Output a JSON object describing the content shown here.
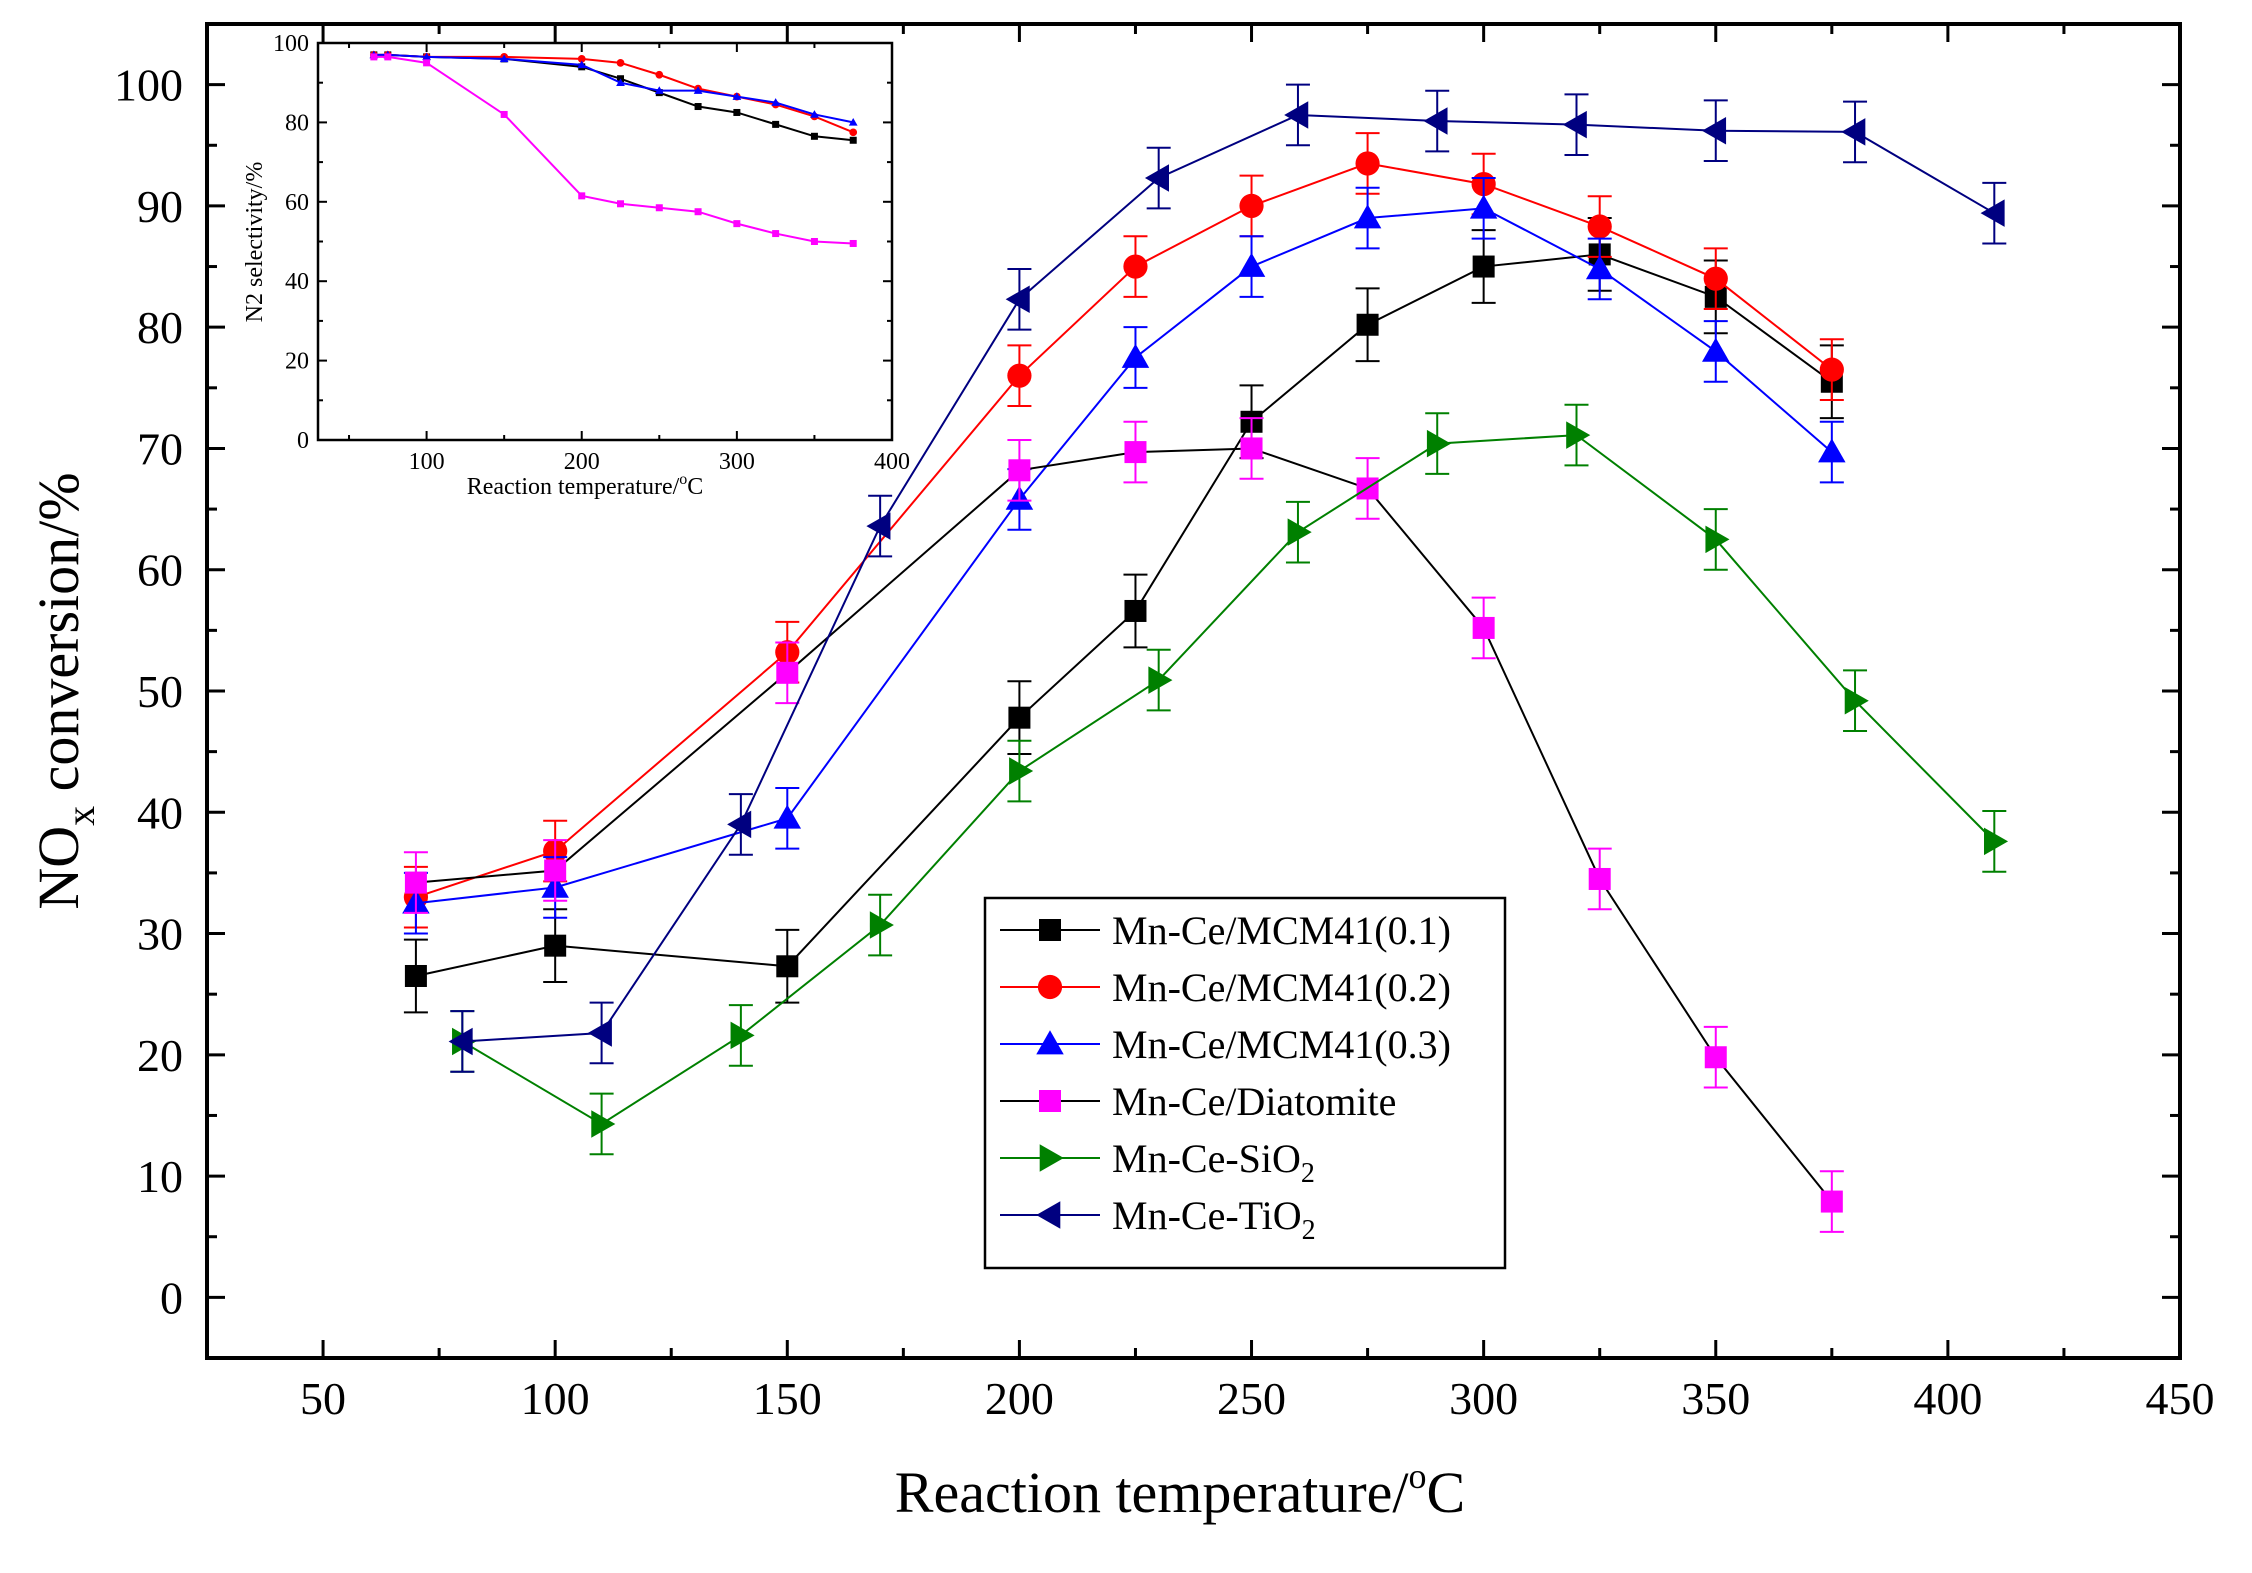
{
  "chart_data": [
    {
      "type": "line",
      "id": "main",
      "xlabel": "Reaction temperature/",
      "xlabel_sup": "o",
      "xlabel_unit": "C",
      "ylabel_main": "NO",
      "ylabel_sub": "x",
      "ylabel_rest": " conversion/%",
      "xlim": [
        25,
        450
      ],
      "ylim": [
        -5,
        105
      ],
      "xticks": [
        50,
        100,
        150,
        200,
        250,
        300,
        350,
        400,
        450
      ],
      "yticks": [
        0,
        10,
        20,
        30,
        40,
        50,
        60,
        70,
        80,
        90,
        100
      ],
      "legend_position": "bottom-center",
      "series": [
        {
          "name": "Mn-Ce/MCM41(0.1)",
          "name_sub": "",
          "color": "#000000",
          "line_color": "#000000",
          "marker": "square",
          "x": [
            70,
            100,
            150,
            200,
            225,
            250,
            275,
            300,
            325,
            350,
            375
          ],
          "y": [
            26.5,
            29,
            27.3,
            47.8,
            56.6,
            72.2,
            80.2,
            85,
            86,
            82.5,
            75.5
          ],
          "err": [
            3,
            3,
            3,
            3,
            3,
            3,
            3,
            3,
            3,
            3,
            3
          ]
        },
        {
          "name": "Mn-Ce/MCM41(0.2)",
          "name_sub": "",
          "color": "#ff0000",
          "line_color": "#ff0000",
          "marker": "circle",
          "x": [
            70,
            100,
            150,
            200,
            225,
            250,
            275,
            300,
            325,
            350,
            375
          ],
          "y": [
            33,
            36.8,
            53.2,
            76,
            85,
            90,
            93.5,
            91.8,
            88.3,
            84,
            76.5
          ],
          "err": [
            2.5,
            2.5,
            2.5,
            2.5,
            2.5,
            2.5,
            2.5,
            2.5,
            2.5,
            2.5,
            2.5
          ]
        },
        {
          "name": "Mn-Ce/MCM41(0.3)",
          "name_sub": "",
          "color": "#0000ff",
          "line_color": "#0000ff",
          "marker": "triangle-up",
          "x": [
            70,
            100,
            150,
            200,
            225,
            250,
            275,
            300,
            325,
            350,
            375
          ],
          "y": [
            32.5,
            33.8,
            39.5,
            65.8,
            77.5,
            85,
            89,
            89.8,
            84.8,
            78,
            69.7
          ],
          "err": [
            2.5,
            2.5,
            2.5,
            2.5,
            2.5,
            2.5,
            2.5,
            2.5,
            2.5,
            2.5,
            2.5
          ]
        },
        {
          "name": "Mn-Ce/Diatomite",
          "name_sub": "",
          "color": "#ff00ff",
          "line_color": "#000000",
          "marker": "square",
          "x": [
            70,
            100,
            150,
            200,
            225,
            250,
            275,
            300,
            325,
            350,
            375
          ],
          "y": [
            34.2,
            35.2,
            51.5,
            68.2,
            69.7,
            70,
            66.7,
            55.2,
            34.5,
            19.8,
            7.9
          ],
          "err": [
            2.5,
            2.5,
            2.5,
            2.5,
            2.5,
            2.5,
            2.5,
            2.5,
            2.5,
            2.5,
            2.5
          ]
        },
        {
          "name": "Mn-Ce-SiO",
          "name_sub": "2",
          "color": "#008000",
          "line_color": "#008000",
          "marker": "triangle-right",
          "x": [
            80,
            110,
            140,
            170,
            200,
            230,
            260,
            290,
            320,
            350,
            380,
            410
          ],
          "y": [
            21.1,
            14.3,
            21.6,
            30.7,
            43.4,
            50.9,
            63.1,
            70.4,
            71.1,
            62.5,
            49.2,
            37.6
          ],
          "err": [
            2.5,
            2.5,
            2.5,
            2.5,
            2.5,
            2.5,
            2.5,
            2.5,
            2.5,
            2.5,
            2.5,
            2.5
          ]
        },
        {
          "name": "Mn-Ce-TiO",
          "name_sub": "2",
          "color": "#000080",
          "line_color": "#000080",
          "marker": "triangle-left",
          "x": [
            80,
            110,
            140,
            170,
            200,
            230,
            260,
            290,
            320,
            350,
            380,
            410
          ],
          "y": [
            21.1,
            21.8,
            39,
            63.6,
            82.3,
            92.3,
            97.5,
            97,
            96.7,
            96.2,
            96.1,
            89.4
          ],
          "err": [
            2.5,
            2.5,
            2.5,
            2.5,
            2.5,
            2.5,
            2.5,
            2.5,
            2.5,
            2.5,
            2.5,
            2.5
          ]
        }
      ]
    },
    {
      "type": "line",
      "id": "inset",
      "xlabel": "Reaction temperature/",
      "xlabel_sup": "o",
      "xlabel_unit": "C",
      "ylabel": "N2 selectivity/%",
      "xlim": [
        30,
        400
      ],
      "ylim": [
        0,
        100
      ],
      "xticks": [
        100,
        200,
        300,
        400
      ],
      "yticks": [
        0,
        20,
        40,
        60,
        80,
        100
      ],
      "series": [
        {
          "color": "#000000",
          "marker": "square",
          "x": [
            66,
            75,
            100,
            150,
            200,
            225,
            250,
            275,
            300,
            325,
            350,
            375
          ],
          "y": [
            97,
            97,
            96.5,
            96,
            94,
            91,
            87.5,
            84,
            82.5,
            79.5,
            76.5,
            75.5
          ]
        },
        {
          "color": "#ff0000",
          "marker": "circle",
          "x": [
            66,
            75,
            100,
            150,
            200,
            225,
            250,
            275,
            300,
            325,
            350,
            375
          ],
          "y": [
            97,
            97,
            96.5,
            96.5,
            96,
            95,
            92,
            88.5,
            86.5,
            84.5,
            81.5,
            77.5
          ]
        },
        {
          "color": "#0000ff",
          "marker": "triangle-up",
          "x": [
            66,
            75,
            100,
            150,
            200,
            225,
            250,
            275,
            300,
            325,
            350,
            375
          ],
          "y": [
            97,
            97,
            96.5,
            96,
            94.5,
            90,
            88,
            88,
            86.5,
            85,
            82,
            80
          ]
        },
        {
          "color": "#ff00ff",
          "marker": "square",
          "x": [
            66,
            75,
            100,
            150,
            200,
            225,
            250,
            275,
            300,
            325,
            350,
            375
          ],
          "y": [
            96.5,
            96.5,
            95,
            82,
            61.5,
            59.5,
            58.5,
            57.5,
            54.5,
            52,
            50,
            49.5
          ]
        }
      ]
    }
  ]
}
